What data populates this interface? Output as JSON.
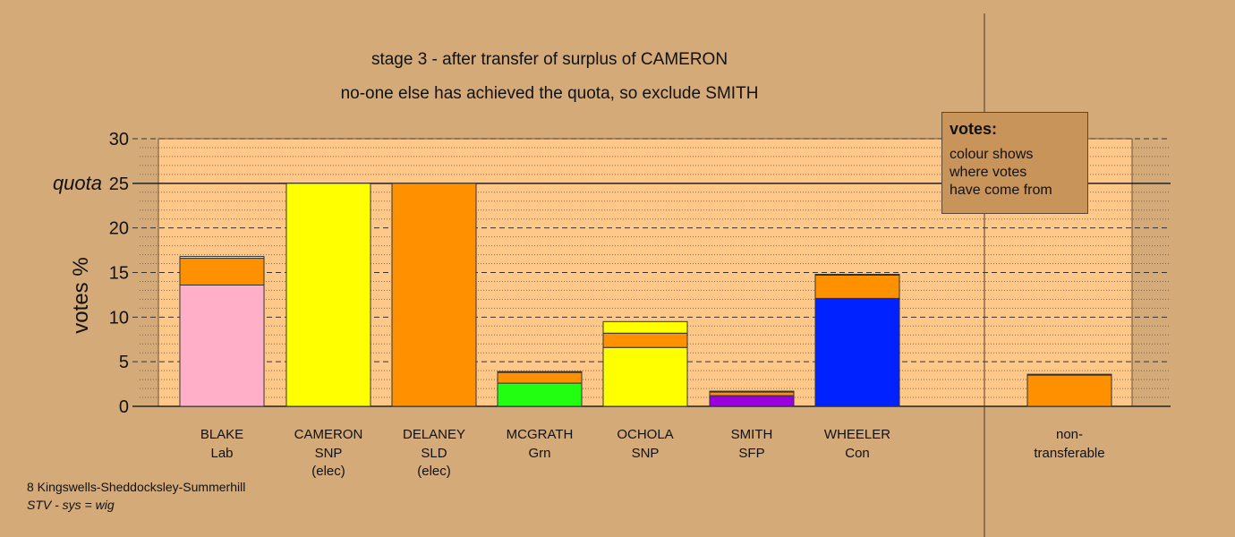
{
  "chart_data": {
    "type": "bar",
    "stacked": true,
    "title": "stage 3 - after transfer of surplus of CAMERON",
    "subtitle": "no-one else has achieved the quota, so exclude SMITH",
    "ylabel": "votes %",
    "ylim": [
      0,
      30
    ],
    "yticks": [
      0,
      5,
      10,
      15,
      20,
      25,
      30
    ],
    "quota": 25,
    "quota_label": "quota",
    "grid": true,
    "categories": [
      {
        "name": "BLAKE",
        "party": "Lab",
        "status": ""
      },
      {
        "name": "CAMERON",
        "party": "SNP",
        "status": "(elec)"
      },
      {
        "name": "DELANEY",
        "party": "SLD",
        "status": "(elec)"
      },
      {
        "name": "MCGRATH",
        "party": "Grn",
        "status": ""
      },
      {
        "name": "OCHOLA",
        "party": "SNP",
        "status": ""
      },
      {
        "name": "SMITH",
        "party": "SFP",
        "status": ""
      },
      {
        "name": "WHEELER",
        "party": "Con",
        "status": ""
      },
      {
        "name": "non-",
        "party": "transferable",
        "status": ""
      }
    ],
    "bars": [
      [
        {
          "value": 13.6,
          "color": "#ffb0c8"
        },
        {
          "value": 3.0,
          "color": "#ff9000"
        },
        {
          "value": 0.2,
          "color": "#ffff00"
        }
      ],
      [
        {
          "value": 25.0,
          "color": "#ffff00"
        }
      ],
      [
        {
          "value": 25.0,
          "color": "#ff9000"
        }
      ],
      [
        {
          "value": 2.6,
          "color": "#22ff11"
        },
        {
          "value": 1.2,
          "color": "#ff9000"
        },
        {
          "value": 0.1,
          "color": "#ffff00"
        }
      ],
      [
        {
          "value": 6.6,
          "color": "#ffff00"
        },
        {
          "value": 1.6,
          "color": "#ff9000"
        },
        {
          "value": 1.3,
          "color": "#ffff00"
        }
      ],
      [
        {
          "value": 1.2,
          "color": "#9900dd"
        },
        {
          "value": 0.4,
          "color": "#ff9000"
        },
        {
          "value": 0.1,
          "color": "#ffff00"
        }
      ],
      [
        {
          "value": 12.1,
          "color": "#0022ff"
        },
        {
          "value": 2.6,
          "color": "#ff9000"
        },
        {
          "value": 0.1,
          "color": "#ffff00"
        }
      ],
      [
        {
          "value": 3.5,
          "color": "#ff9000"
        },
        {
          "value": 0.1,
          "color": "#ffff00"
        }
      ]
    ]
  },
  "legend": {
    "title": "votes:",
    "text": "colour shows\nwhere votes\nhave come from"
  },
  "footer": {
    "ward": "8 Kingswells-Sheddocksley-Summerhill",
    "system": "STV - sys = wig"
  },
  "colors": {
    "background": "#d4aa78",
    "plot_area": "#ffc888",
    "legend_background": "#c9945a"
  }
}
